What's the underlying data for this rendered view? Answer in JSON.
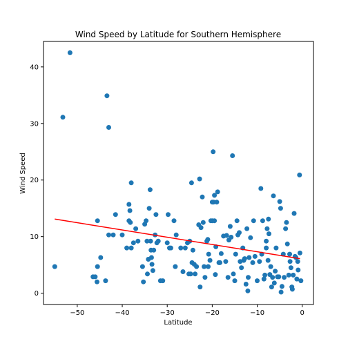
{
  "chart_data": {
    "type": "scatter",
    "title": "Wind Speed by Latitude for Southern Hemisphere",
    "xlabel": "Latitude",
    "ylabel": "Wind Speed",
    "xlim": [
      -57.5,
      2.5
    ],
    "ylim": [
      -2,
      44.5
    ],
    "xticks": [
      -50,
      -40,
      -30,
      -20,
      -10,
      0
    ],
    "yticks": [
      0,
      10,
      20,
      30,
      40
    ],
    "grid": false,
    "point_color": "#1f77b4",
    "line_color": "#ff0000",
    "regression": {
      "x": [
        -55,
        -0.5
      ],
      "y": [
        13.1,
        6.1
      ]
    },
    "points": [
      [
        -55,
        4.7
      ],
      [
        -53.2,
        31.1
      ],
      [
        -51.6,
        42.5
      ],
      [
        -46.5,
        2.9
      ],
      [
        -46,
        2.9
      ],
      [
        -45.6,
        2.0
      ],
      [
        -45.5,
        4.7
      ],
      [
        -45.5,
        12.8
      ],
      [
        -44.8,
        6.3
      ],
      [
        -43.7,
        2.2
      ],
      [
        -43.4,
        34.9
      ],
      [
        -43,
        29.3
      ],
      [
        -43,
        10.3
      ],
      [
        -42,
        10.3
      ],
      [
        -41.5,
        13.9
      ],
      [
        -40,
        10.3
      ],
      [
        -39,
        8.0
      ],
      [
        -38.5,
        15.7
      ],
      [
        -38.5,
        12.8
      ],
      [
        -38.3,
        14.6
      ],
      [
        -38.2,
        12.5
      ],
      [
        -38,
        19.5
      ],
      [
        -38,
        8.0
      ],
      [
        -37.5,
        8.9
      ],
      [
        -37,
        11.4
      ],
      [
        -36.5,
        9.2
      ],
      [
        -35.5,
        4.7
      ],
      [
        -35.3,
        2.0
      ],
      [
        -35,
        12.2
      ],
      [
        -34.7,
        12.8
      ],
      [
        -34.5,
        9.2
      ],
      [
        -34.4,
        3.4
      ],
      [
        -34.2,
        6.0
      ],
      [
        -34,
        15.0
      ],
      [
        -33.8,
        18.3
      ],
      [
        -33.7,
        9.2
      ],
      [
        -33.6,
        7.6
      ],
      [
        -33.5,
        6.3
      ],
      [
        -33.4,
        5.1
      ],
      [
        -33.2,
        4.0
      ],
      [
        -33,
        7.6
      ],
      [
        -32.7,
        10.3
      ],
      [
        -32.5,
        13.9
      ],
      [
        -32.3,
        8.9
      ],
      [
        -32,
        9.2
      ],
      [
        -31.5,
        2.2
      ],
      [
        -31,
        2.2
      ],
      [
        -30,
        8.9
      ],
      [
        -29.8,
        13.9
      ],
      [
        -29.5,
        8.0
      ],
      [
        -29.2,
        8.0
      ],
      [
        -28.5,
        12.8
      ],
      [
        -28.2,
        4.7
      ],
      [
        -28,
        10.3
      ],
      [
        -27,
        8.0
      ],
      [
        -26.5,
        3.8
      ],
      [
        -26,
        8.0
      ],
      [
        -25.5,
        8.9
      ],
      [
        -25.2,
        3.4
      ],
      [
        -25,
        9.2
      ],
      [
        -24.8,
        3.4
      ],
      [
        -24.6,
        19.5
      ],
      [
        -24.5,
        5.4
      ],
      [
        -24.3,
        7.6
      ],
      [
        -24,
        5.1
      ],
      [
        -23.8,
        3.4
      ],
      [
        -23.5,
        4.7
      ],
      [
        -23,
        12.1
      ],
      [
        -22.8,
        20.2
      ],
      [
        -22.7,
        1.1
      ],
      [
        -22.5,
        11.6
      ],
      [
        -22.2,
        17.0
      ],
      [
        -22,
        12.5
      ],
      [
        -21.8,
        4.7
      ],
      [
        -21.6,
        2.8
      ],
      [
        -21.2,
        9.2
      ],
      [
        -21,
        9.5
      ],
      [
        -20.9,
        4.7
      ],
      [
        -20.8,
        6.9
      ],
      [
        -20.5,
        5.8
      ],
      [
        -20.3,
        12.8
      ],
      [
        -20,
        12.8
      ],
      [
        -20,
        16.1
      ],
      [
        -19.8,
        25.0
      ],
      [
        -19.7,
        16.1
      ],
      [
        -19.5,
        17.3
      ],
      [
        -19.5,
        12.8
      ],
      [
        -19.3,
        3.3
      ],
      [
        -19.2,
        8.2
      ],
      [
        -19,
        16.1
      ],
      [
        -18.8,
        17.9
      ],
      [
        -18.5,
        5.4
      ],
      [
        -18.3,
        5.4
      ],
      [
        -18,
        7.0
      ],
      [
        -17.5,
        10.1
      ],
      [
        -17,
        5.6
      ],
      [
        -16.8,
        10.2
      ],
      [
        -16.5,
        2.8
      ],
      [
        -16.3,
        9.4
      ],
      [
        -16,
        11.8
      ],
      [
        -15.8,
        9.9
      ],
      [
        -15.5,
        24.3
      ],
      [
        -15.3,
        3.4
      ],
      [
        -15,
        2.2
      ],
      [
        -14.8,
        6.9
      ],
      [
        -14.5,
        12.8
      ],
      [
        -14.3,
        10.3
      ],
      [
        -14,
        10.7
      ],
      [
        -13.8,
        5.6
      ],
      [
        -13.5,
        4.5
      ],
      [
        -13.2,
        8.0
      ],
      [
        -13,
        5.8
      ],
      [
        -12.8,
        6.1
      ],
      [
        -12.5,
        1.6
      ],
      [
        -12.3,
        11.4
      ],
      [
        -12.1,
        0.4
      ],
      [
        -12,
        2.8
      ],
      [
        -11.8,
        6.3
      ],
      [
        -11.5,
        9.8
      ],
      [
        -11,
        5.4
      ],
      [
        -10.8,
        12.8
      ],
      [
        -10.5,
        6.5
      ],
      [
        -10,
        2.2
      ],
      [
        -9.5,
        5.6
      ],
      [
        -9.2,
        18.5
      ],
      [
        -9,
        6.9
      ],
      [
        -8.8,
        12.8
      ],
      [
        -8.5,
        2.5
      ],
      [
        -8.3,
        3.2
      ],
      [
        -8,
        8.0
      ],
      [
        -8,
        9.2
      ],
      [
        -7.8,
        11.4
      ],
      [
        -7.6,
        5.8
      ],
      [
        -7.5,
        13.1
      ],
      [
        -7.4,
        10.5
      ],
      [
        -7.2,
        3.3
      ],
      [
        -7,
        4.7
      ],
      [
        -6.8,
        1.1
      ],
      [
        -6.6,
        2.8
      ],
      [
        -6.4,
        17.2
      ],
      [
        -6.2,
        1.8
      ],
      [
        -6,
        3.9
      ],
      [
        -5.8,
        8.0
      ],
      [
        -5.5,
        2.9
      ],
      [
        -5.2,
        2.9
      ],
      [
        -5,
        16.2
      ],
      [
        -4.8,
        15.0
      ],
      [
        -4.7,
        0.2
      ],
      [
        -4.5,
        1.2
      ],
      [
        -4.2,
        6.9
      ],
      [
        -4,
        2.8
      ],
      [
        -3.7,
        11.4
      ],
      [
        -3.5,
        12.5
      ],
      [
        -3.3,
        8.7
      ],
      [
        -3,
        3.2
      ],
      [
        -2.8,
        6.9
      ],
      [
        -2.7,
        5.6
      ],
      [
        -2.5,
        4.5
      ],
      [
        -2.3,
        1.1
      ],
      [
        -2.2,
        0.7
      ],
      [
        -2,
        3.2
      ],
      [
        -1.8,
        14.1
      ],
      [
        -1.6,
        6.5
      ],
      [
        -1.4,
        6.3
      ],
      [
        -1.2,
        2.5
      ],
      [
        -1,
        5.6
      ],
      [
        -0.9,
        4.1
      ],
      [
        -0.6,
        20.9
      ],
      [
        -0.5,
        7.1
      ],
      [
        -0.3,
        2.2
      ]
    ]
  }
}
